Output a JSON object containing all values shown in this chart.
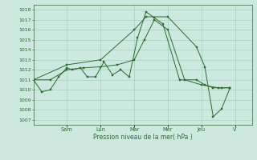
{
  "background_color": "#cce8df",
  "grid_color": "#99ccbb",
  "line_color": "#2d6a2d",
  "xlabel": "Pression niveau de la mer( hPa )",
  "ylim": [
    1006.5,
    1018.5
  ],
  "yticks": [
    1007,
    1008,
    1009,
    1010,
    1011,
    1012,
    1013,
    1014,
    1015,
    1016,
    1017,
    1018
  ],
  "x_day_labels": [
    "Sam",
    "Lun",
    "Mar",
    "Mer",
    "Jeu",
    "V"
  ],
  "x_day_positions": [
    1,
    2,
    3,
    4,
    5,
    6
  ],
  "xlim": [
    0,
    6.5
  ],
  "series1_x": [
    0.0,
    0.25,
    0.5,
    0.75,
    1.0,
    1.15,
    1.4,
    1.6,
    1.85,
    2.1,
    2.35,
    2.6,
    2.85,
    3.1,
    3.35,
    3.6,
    3.85,
    4.35,
    4.85,
    5.1,
    5.35,
    5.6,
    5.85
  ],
  "series1_y": [
    1011.0,
    1009.8,
    1010.0,
    1011.3,
    1012.2,
    1012.0,
    1012.2,
    1011.3,
    1011.3,
    1012.8,
    1011.5,
    1012.0,
    1011.3,
    1015.2,
    1017.8,
    1017.2,
    1016.6,
    1011.0,
    1011.0,
    1010.5,
    1010.2,
    1010.2,
    1010.2
  ],
  "series2_x": [
    0.0,
    0.5,
    1.0,
    1.5,
    2.0,
    2.5,
    3.0,
    3.3,
    3.6,
    4.0,
    4.5,
    5.0,
    5.5,
    5.85
  ],
  "series2_y": [
    1011.0,
    1011.0,
    1012.0,
    1012.2,
    1012.3,
    1012.5,
    1013.0,
    1015.0,
    1017.0,
    1016.0,
    1011.0,
    1010.5,
    1010.2,
    1010.2
  ],
  "series3_x": [
    0.0,
    1.0,
    2.0,
    3.0,
    3.35,
    4.0,
    4.85,
    5.1,
    5.35,
    5.6,
    5.85
  ],
  "series3_y": [
    1011.0,
    1012.5,
    1013.0,
    1016.0,
    1017.3,
    1017.3,
    1014.3,
    1012.3,
    1007.3,
    1008.1,
    1010.2
  ]
}
